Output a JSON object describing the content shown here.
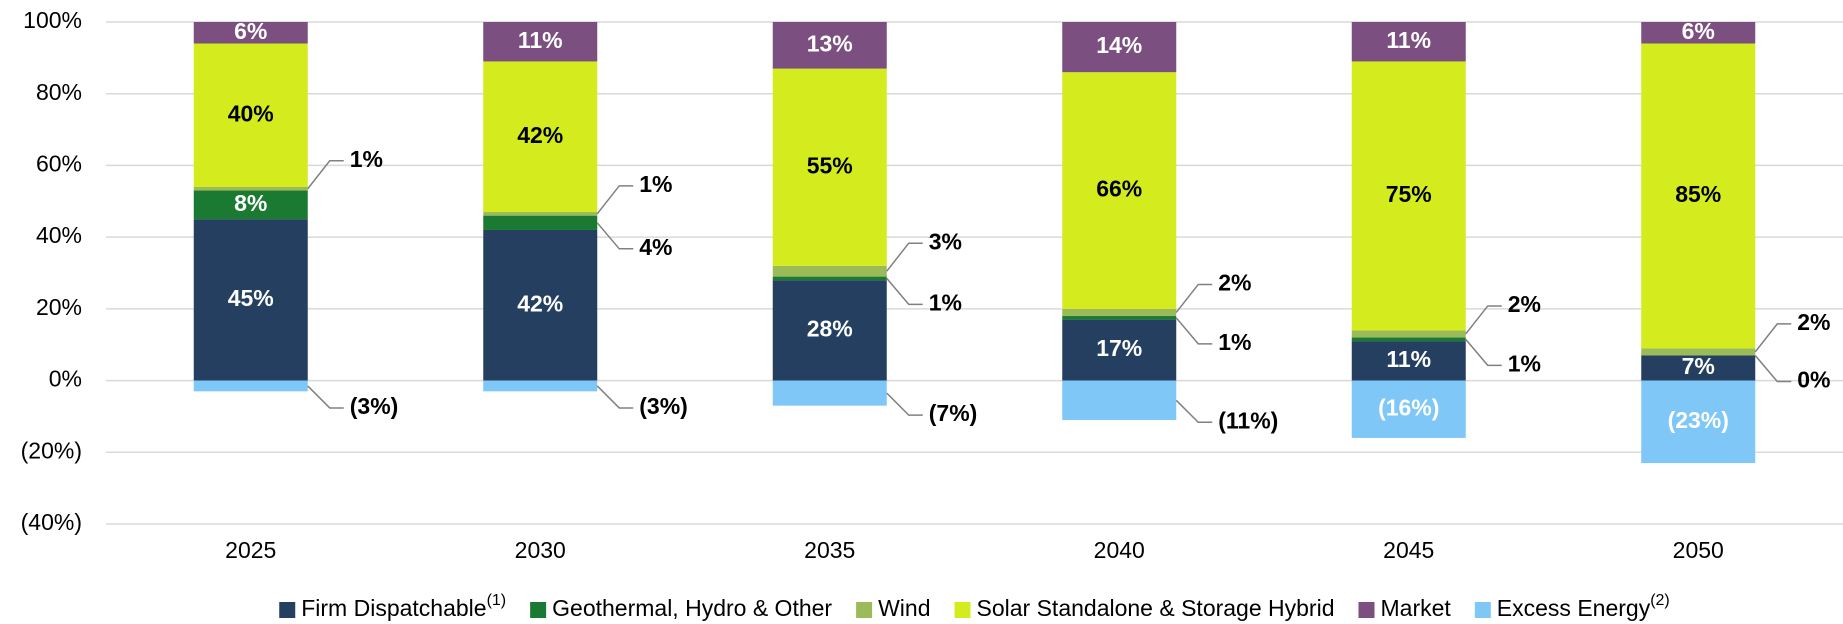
{
  "chart_data": {
    "type": "stacked_bar",
    "categories": [
      "2025",
      "2030",
      "2035",
      "2040",
      "2045",
      "2050"
    ],
    "ylim": [
      -40,
      100
    ],
    "yticks": [
      {
        "value": 100,
        "label": "100%"
      },
      {
        "value": 80,
        "label": "80%"
      },
      {
        "value": 60,
        "label": "60%"
      },
      {
        "value": 40,
        "label": "40%"
      },
      {
        "value": 20,
        "label": "20%"
      },
      {
        "value": 0,
        "label": "0%"
      },
      {
        "value": -20,
        "label": "(20%)"
      },
      {
        "value": -40,
        "label": "(40%)"
      }
    ],
    "grid": true,
    "legend": "bottom",
    "series": [
      {
        "name": "Firm Dispatchable",
        "footnote": "(1)",
        "color": "#243f60",
        "values": [
          45,
          42,
          28,
          17,
          11,
          7
        ],
        "value_labels": [
          "45%",
          "42%",
          "28%",
          "17%",
          "11%",
          "7%"
        ]
      },
      {
        "name": "Geothermal, Hydro & Other",
        "color": "#1a7a32",
        "values": [
          8,
          4,
          1,
          1,
          1,
          0
        ],
        "value_labels": [
          "8%",
          "4%",
          "1%",
          "1%",
          "1%",
          "0%"
        ]
      },
      {
        "name": "Wind",
        "color": "#9bbb59",
        "values": [
          1,
          1,
          3,
          2,
          2,
          2
        ],
        "value_labels": [
          "1%",
          "1%",
          "3%",
          "2%",
          "2%",
          "2%"
        ]
      },
      {
        "name": "Solar Standalone & Storage Hybrid",
        "color": "#d4ec1e",
        "values": [
          40,
          42,
          55,
          66,
          75,
          85
        ],
        "value_labels": [
          "40%",
          "42%",
          "55%",
          "66%",
          "75%",
          "85%"
        ]
      },
      {
        "name": "Market",
        "color": "#7b4f80",
        "values": [
          6,
          11,
          13,
          14,
          11,
          6
        ],
        "value_labels": [
          "6%",
          "11%",
          "13%",
          "14%",
          "11%",
          "6%"
        ]
      },
      {
        "name": "Excess Energy",
        "footnote": "(2)",
        "color": "#7fc7f7",
        "values": [
          -3,
          -3,
          -7,
          -11,
          -16,
          -23
        ],
        "value_labels": [
          "(3%)",
          "(3%)",
          "(7%)",
          "(11%)",
          "(16%)",
          "(23%)"
        ]
      }
    ]
  }
}
